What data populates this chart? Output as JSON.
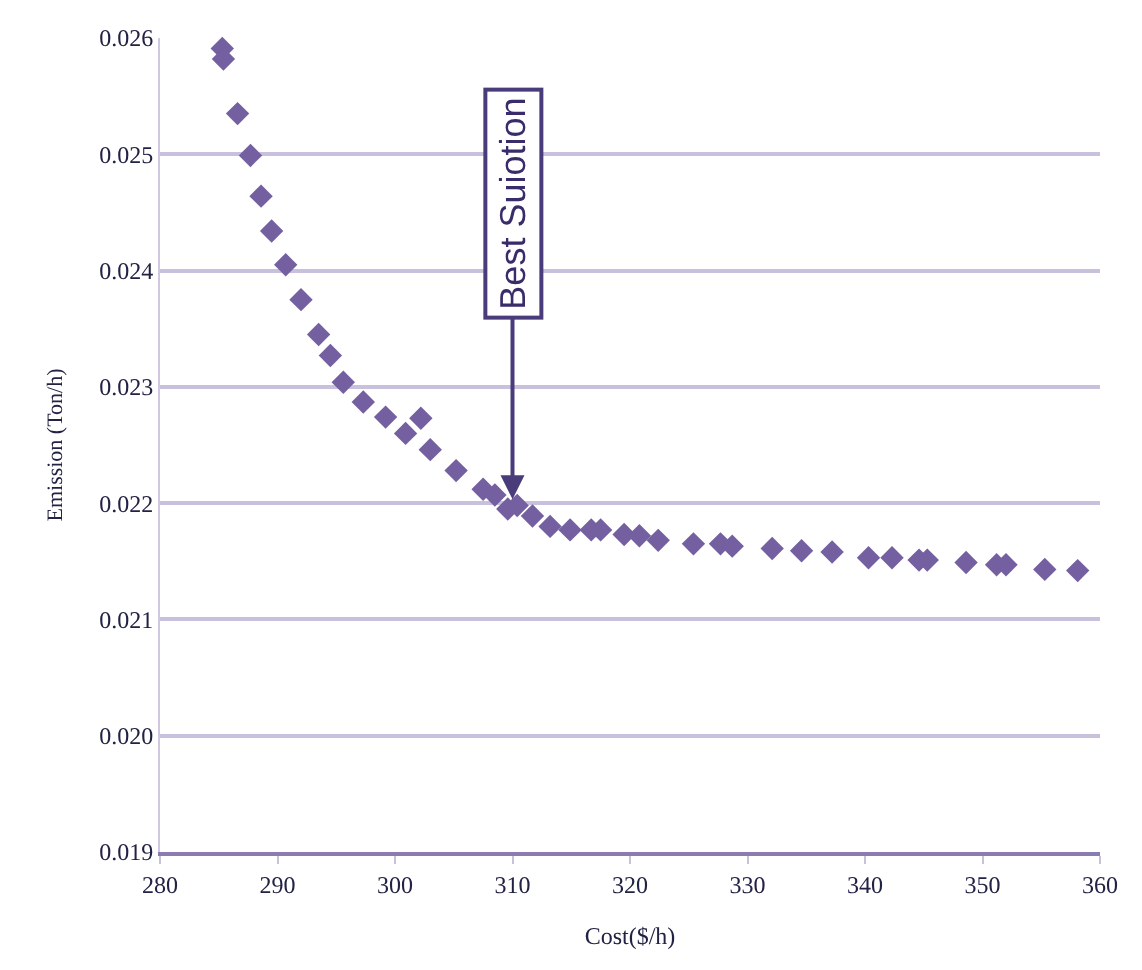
{
  "chart_data": {
    "type": "scatter",
    "xlabel": "Cost($/h)",
    "ylabel": "Emission (Ton/h)",
    "x": [
      285.3,
      285.4,
      286.6,
      287.7,
      288.6,
      289.5,
      290.7,
      292.0,
      293.5,
      294.5,
      295.6,
      297.3,
      299.2,
      300.9,
      302.2,
      303.0,
      305.2,
      307.5,
      308.5,
      309.6,
      310.4,
      311.7,
      313.2,
      314.9,
      316.7,
      317.5,
      319.5,
      320.8,
      322.4,
      325.4,
      327.7,
      328.7,
      332.1,
      334.6,
      337.2,
      340.3,
      342.3,
      344.6,
      345.3,
      348.6,
      351.2,
      352.0,
      355.3,
      358.1
    ],
    "series": [
      {
        "color": "#7460a0",
        "values": [
          0.02591,
          0.02582,
          0.02535,
          0.02499,
          0.02464,
          0.02434,
          0.02405,
          0.02375,
          0.02345,
          0.02327,
          0.02304,
          0.02287,
          0.02274,
          0.0226,
          0.02273,
          0.02246,
          0.02228,
          0.02212,
          0.02207,
          0.02195,
          0.02198,
          0.02189,
          0.0218,
          0.02177,
          0.02177,
          0.02177,
          0.02173,
          0.02172,
          0.02168,
          0.02165,
          0.02165,
          0.02163,
          0.02161,
          0.02159,
          0.02158,
          0.02153,
          0.02153,
          0.02151,
          0.02151,
          0.02149,
          0.02147,
          0.02147,
          0.02143,
          0.02142
        ]
      }
    ],
    "annotations": [
      {
        "text": "Best Suiotion",
        "x": 310,
        "y": 0.022
      }
    ],
    "xlim": [
      280,
      360
    ],
    "xticks": [
      280,
      290,
      300,
      310,
      320,
      330,
      340,
      350,
      360
    ],
    "ylim": [
      0.019,
      0.026
    ],
    "yticks": [
      {
        "value": 0.019,
        "label": "0.019"
      },
      {
        "value": 0.02,
        "label": "0.020"
      },
      {
        "value": 0.021,
        "label": "0.021"
      },
      {
        "value": 0.022,
        "label": "0.022"
      },
      {
        "value": 0.023,
        "label": "0.023"
      },
      {
        "value": 0.024,
        "label": "0.024"
      },
      {
        "value": 0.025,
        "label": "0.025"
      },
      {
        "value": 0.026,
        "label": "0.026"
      }
    ],
    "grid": "y",
    "marker": "diamond",
    "legend": false
  }
}
